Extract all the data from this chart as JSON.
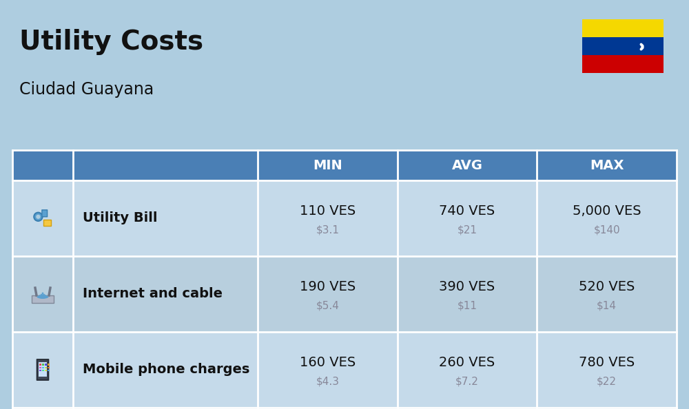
{
  "title": "Utility Costs",
  "subtitle": "Ciudad Guayana",
  "bg_color": "#aecde0",
  "header_bg": "#4a7fb5",
  "header_text_color": "#ffffff",
  "row_bg_light": "#c5daea",
  "row_bg_dark": "#b8cfde",
  "text_color_dark": "#111111",
  "text_color_gray": "#888899",
  "columns": [
    "MIN",
    "AVG",
    "MAX"
  ],
  "rows": [
    {
      "label": "Utility Bill",
      "min_ves": "110 VES",
      "min_usd": "$3.1",
      "avg_ves": "740 VES",
      "avg_usd": "$21",
      "max_ves": "5,000 VES",
      "max_usd": "$140"
    },
    {
      "label": "Internet and cable",
      "min_ves": "190 VES",
      "min_usd": "$5.4",
      "avg_ves": "390 VES",
      "avg_usd": "$11",
      "max_ves": "520 VES",
      "max_usd": "$14"
    },
    {
      "label": "Mobile phone charges",
      "min_ves": "160 VES",
      "min_usd": "$4.3",
      "avg_ves": "260 VES",
      "avg_usd": "$7.2",
      "max_ves": "780 VES",
      "max_usd": "$22"
    }
  ],
  "flag_colors": [
    "#f5d800",
    "#003893",
    "#cc0001"
  ],
  "title_fontsize": 28,
  "subtitle_fontsize": 17,
  "header_fontsize": 14,
  "label_fontsize": 14,
  "ves_fontsize": 14,
  "usd_fontsize": 11
}
